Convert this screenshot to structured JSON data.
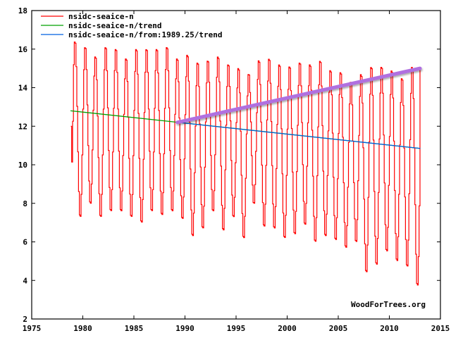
{
  "chart_data": {
    "type": "line",
    "title": "",
    "xlabel": "",
    "ylabel": "",
    "xlim": [
      1975,
      2015
    ],
    "ylim": [
      2,
      18
    ],
    "xticks": [
      1975,
      1980,
      1985,
      1990,
      1995,
      2000,
      2005,
      2010,
      2015
    ],
    "yticks": [
      2,
      4,
      6,
      8,
      10,
      12,
      14,
      16,
      18
    ],
    "grid": false,
    "legend_position": "top-left",
    "credit": "WoodForTrees.org",
    "series": [
      {
        "name": "nsidc-seaice-n",
        "color": "#ff0000",
        "kind": "monthly-seasonal",
        "start": 1978.83,
        "end": 2013.0,
        "start_value": 12.0,
        "end_value": 15.0,
        "years": [
          1979,
          1980,
          1981,
          1982,
          1983,
          1984,
          1985,
          1986,
          1987,
          1988,
          1989,
          1990,
          1991,
          1992,
          1993,
          1994,
          1995,
          1996,
          1997,
          1998,
          1999,
          2000,
          2001,
          2002,
          2003,
          2004,
          2005,
          2006,
          2007,
          2008,
          2009,
          2010,
          2011,
          2012
        ],
        "annual_max": [
          16.5,
          16.2,
          15.7,
          16.2,
          16.1,
          15.6,
          16.1,
          16.1,
          16.1,
          16.2,
          15.6,
          15.8,
          15.4,
          15.5,
          15.7,
          15.3,
          15.1,
          14.8,
          15.5,
          15.6,
          15.3,
          15.2,
          15.4,
          15.3,
          15.5,
          15.0,
          14.9,
          14.4,
          14.8,
          15.2,
          15.2,
          15.0,
          14.6,
          15.2
        ],
        "annual_min": [
          7.2,
          7.9,
          7.2,
          7.5,
          7.5,
          7.2,
          6.9,
          7.5,
          7.3,
          7.5,
          7.1,
          6.2,
          6.6,
          7.5,
          6.5,
          7.2,
          6.1,
          7.9,
          6.7,
          6.6,
          6.1,
          6.3,
          6.8,
          5.9,
          6.2,
          6.0,
          5.6,
          5.9,
          4.3,
          4.7,
          5.4,
          4.9,
          4.6,
          3.6
        ]
      },
      {
        "name": "nsidc-seaice-n/trend",
        "color": "#00a000",
        "x": [
          1978.83,
          2013.0
        ],
        "y": [
          12.8,
          10.85
        ]
      },
      {
        "name": "nsidc-seaice-n/from:1989.25/trend",
        "color": "#0060e0",
        "x": [
          1989.25,
          2013.0
        ],
        "y": [
          12.2,
          10.85
        ]
      },
      {
        "name": "highlight-trend",
        "color": "#b070e0",
        "legend": false,
        "x": [
          1989.25,
          2013.0
        ],
        "y": [
          12.2,
          15.0
        ]
      }
    ]
  }
}
